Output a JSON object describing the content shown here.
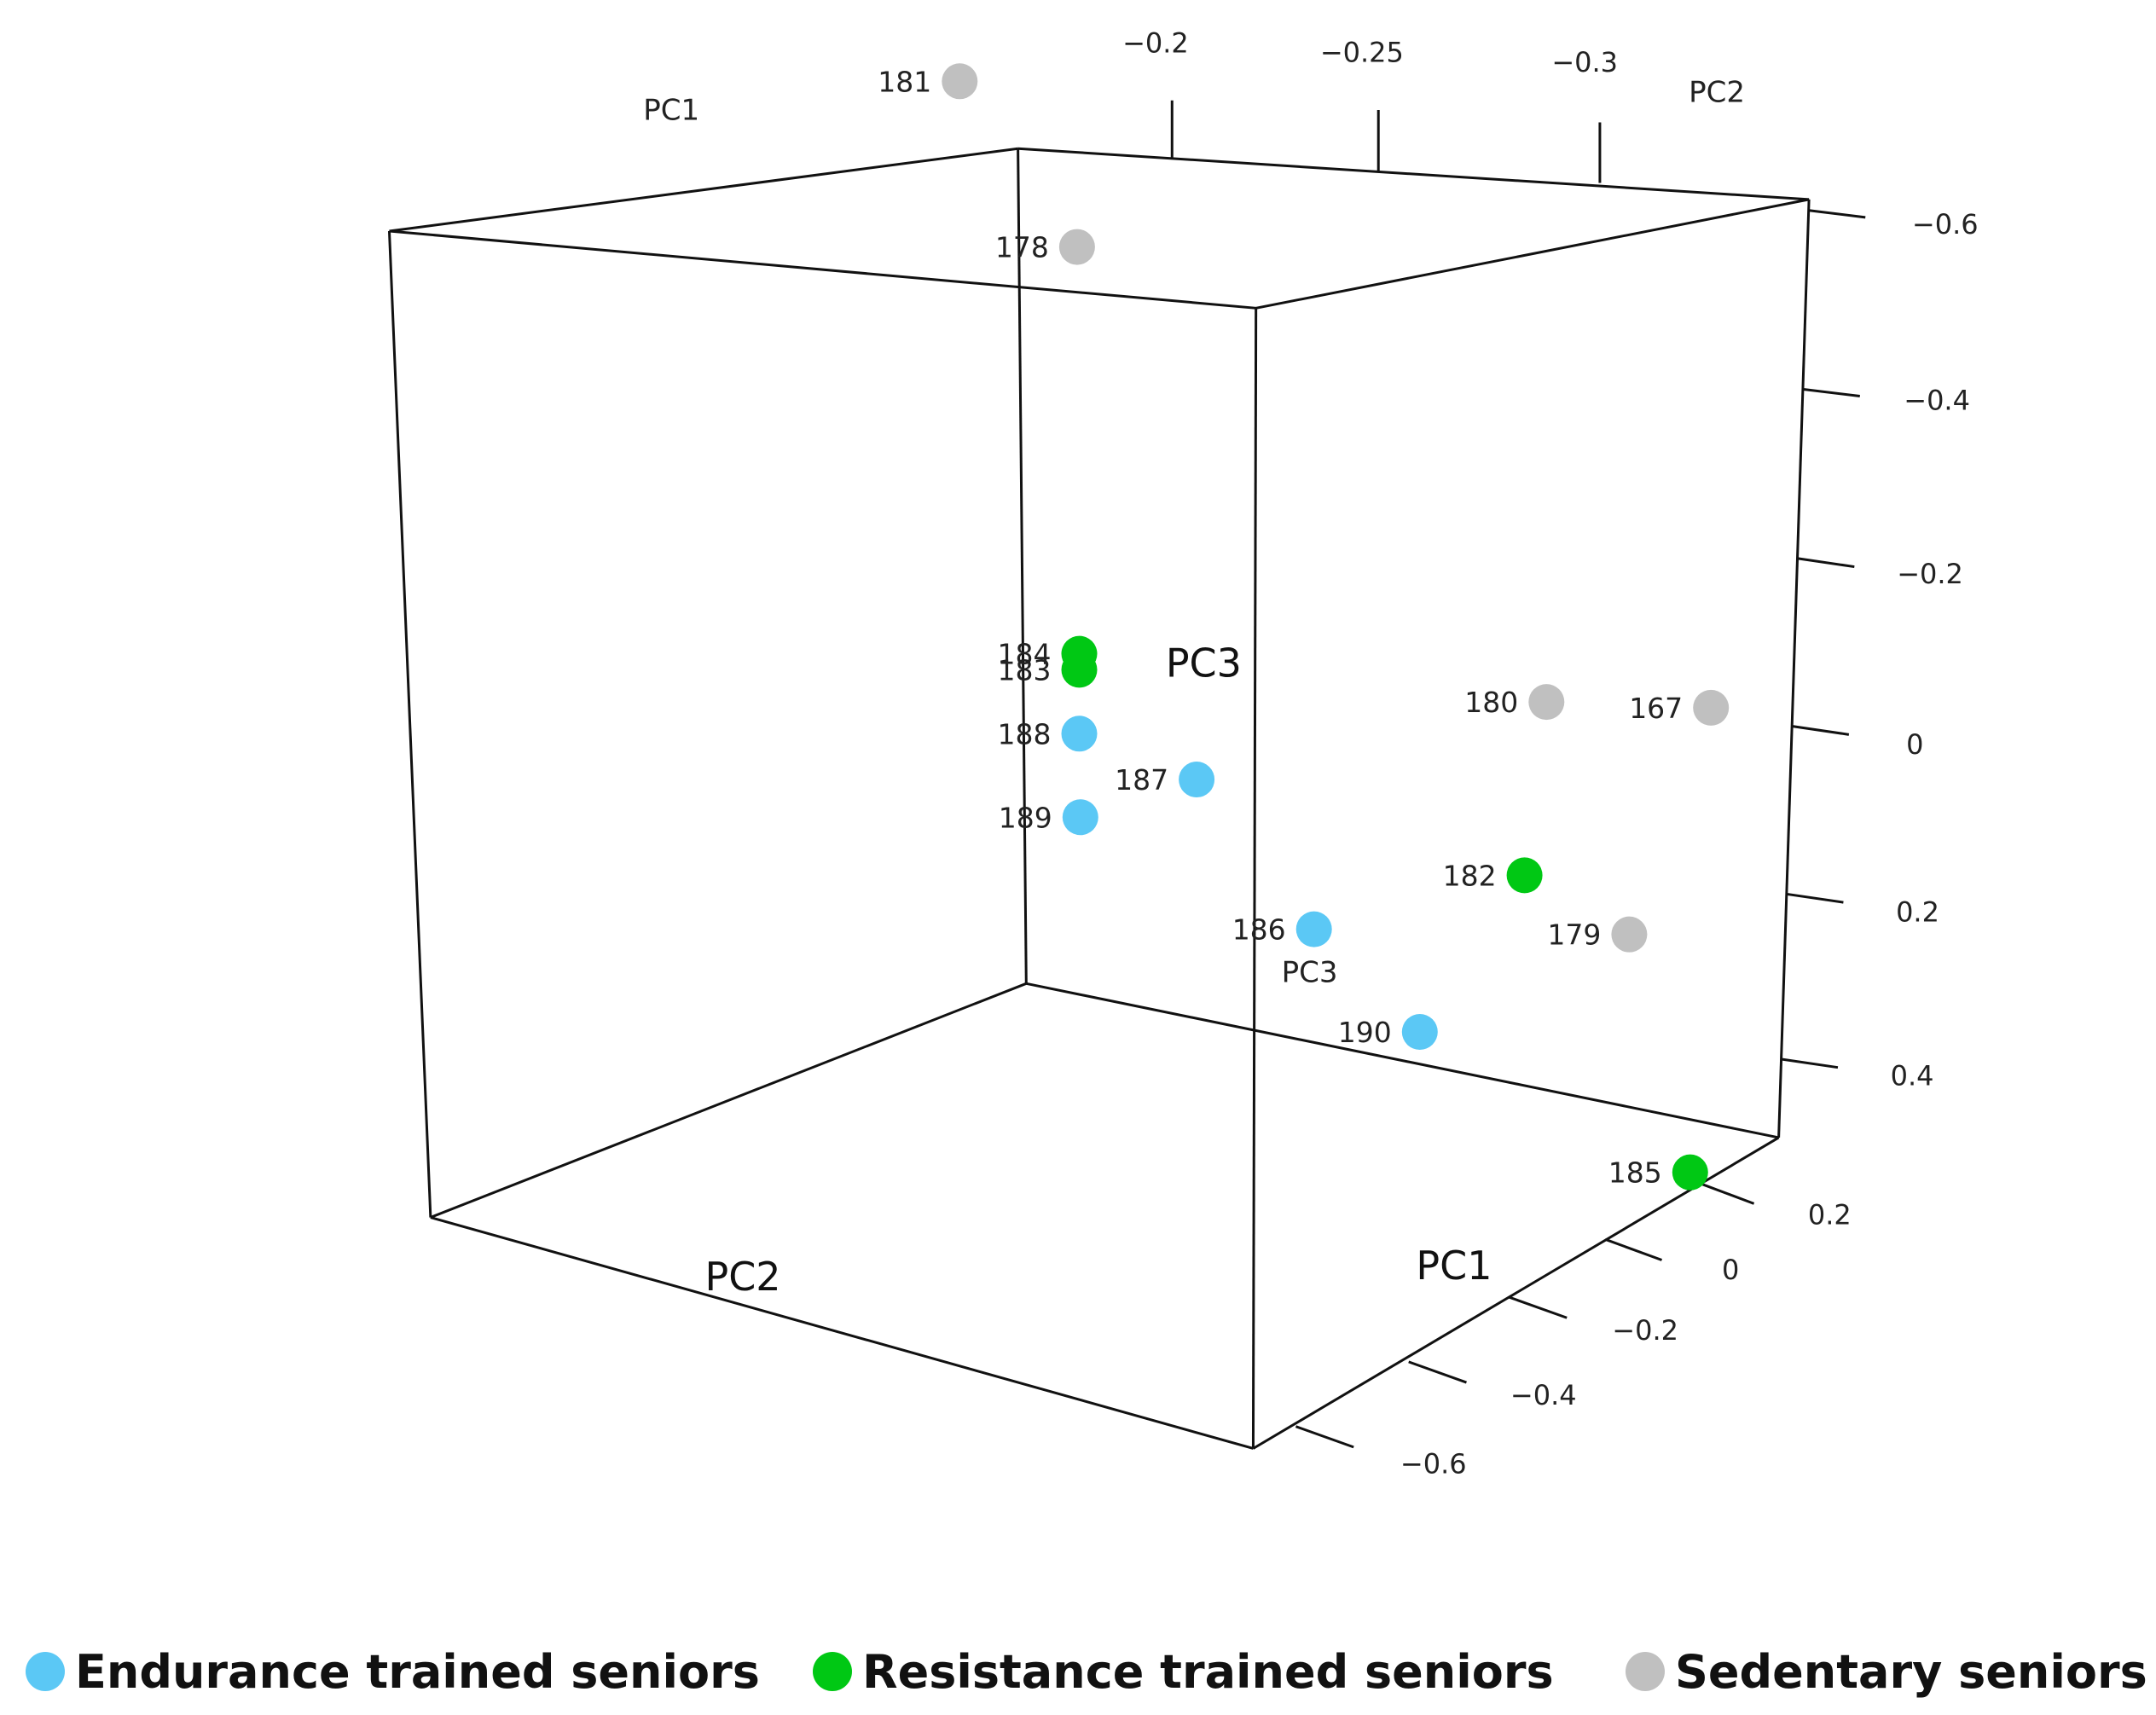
{
  "chart_data": {
    "type": "scatter",
    "series": [
      {
        "name": "Endurance trained seniors",
        "color": "#5bc8f5",
        "points": [
          {
            "label": "186",
            "pc1": -0.05,
            "pc2": -0.26,
            "pc3": 0.18
          },
          {
            "label": "187",
            "pc1": 0.05,
            "pc2": -0.28,
            "pc3": 0.03
          },
          {
            "label": "188",
            "pc1": 0.15,
            "pc2": -0.3,
            "pc3": 0.01
          },
          {
            "label": "189",
            "pc1": 0.1,
            "pc2": -0.34,
            "pc3": 0.09
          },
          {
            "label": "190",
            "pc1": -0.15,
            "pc2": -0.25,
            "pc3": 0.27
          }
        ]
      },
      {
        "name": "Resistance trained seniors",
        "color": "#00c814",
        "points": [
          {
            "label": "182",
            "pc1": -0.2,
            "pc2": -0.2,
            "pc3": 0.06
          },
          {
            "label": "183",
            "pc1": 0.15,
            "pc2": -0.3,
            "pc3": -0.07
          },
          {
            "label": "184",
            "pc1": 0.15,
            "pc2": -0.3,
            "pc3": -0.09
          },
          {
            "label": "185",
            "pc1": -0.4,
            "pc2": -0.22,
            "pc3": 0.35
          }
        ]
      },
      {
        "name": "Sedentary seniors",
        "color": "#c0c0c0",
        "points": [
          {
            "label": "167",
            "pc1": -0.3,
            "pc2": -0.12,
            "pc3": -0.18
          },
          {
            "label": "178",
            "pc1": 0.25,
            "pc2": -0.22,
            "pc3": -0.55
          },
          {
            "label": "179",
            "pc1": -0.25,
            "pc2": -0.15,
            "pc3": 0.12
          },
          {
            "label": "180",
            "pc1": -0.15,
            "pc2": -0.14,
            "pc3": -0.13
          },
          {
            "label": "181",
            "pc1": 0.35,
            "pc2": -0.24,
            "pc3": -0.72
          }
        ]
      }
    ],
    "axes": {
      "pc1": {
        "title": "PC1",
        "ticks": [
          "0.2",
          "0",
          "−0.2",
          "−0.4",
          "−0.6"
        ],
        "range": [
          -0.7,
          0.35
        ]
      },
      "pc2": {
        "title": "PC2",
        "ticks": [
          "−0.2",
          "−0.25",
          "−0.3"
        ],
        "range": [
          -0.1,
          -0.35
        ]
      },
      "pc3": {
        "title": "PC3",
        "ticks": [
          "−0.6",
          "−0.4",
          "−0.2",
          "0",
          "0.2",
          "0.4"
        ],
        "range": [
          -0.8,
          0.45
        ]
      }
    },
    "corner_labels": {
      "pc1": "PC1",
      "pc2": "PC2",
      "pc3": "PC3"
    },
    "legend_placement": "bottom",
    "grid": false
  }
}
